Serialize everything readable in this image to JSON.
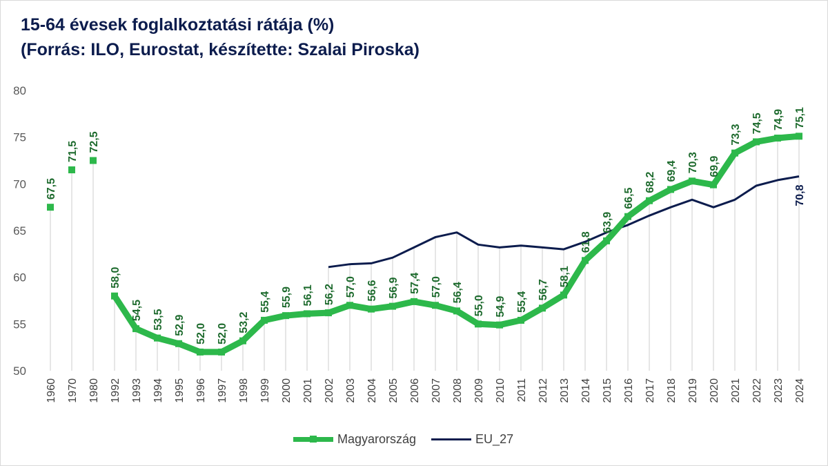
{
  "title": {
    "line1": "15-64 évesek foglalkoztatási rátája (%)",
    "line2": "(Forrás: ILO, Eurostat, készítette: Szalai Piroska)"
  },
  "colors": {
    "hungary": "#2db84b",
    "hungary_label": "#1e6b2e",
    "eu": "#0c1c4d",
    "grid": "#d9d9d9",
    "axis_text": "#595959"
  },
  "legend": {
    "hungary": "Magyarország",
    "eu": "EU_27"
  },
  "chart_data": {
    "type": "line",
    "title": "15-64 évesek foglalkoztatási rátája (%)",
    "subtitle": "(Forrás: ILO, Eurostat, készítette: Szalai Piroska)",
    "xlabel": "",
    "ylabel": "",
    "ylim": [
      50,
      80
    ],
    "yticks": [
      "50",
      "55",
      "60",
      "65",
      "70",
      "75",
      "80"
    ],
    "categories": [
      "1960",
      "1970",
      "1980",
      "1992",
      "1993",
      "1994",
      "1995",
      "1996",
      "1997",
      "1998",
      "1999",
      "2000",
      "2001",
      "2002",
      "2003",
      "2004",
      "2005",
      "2006",
      "2007",
      "2008",
      "2009",
      "2010",
      "2011",
      "2012",
      "2013",
      "2014",
      "2015",
      "2016",
      "2017",
      "2018",
      "2019",
      "2020",
      "2021",
      "2022",
      "2023",
      "2024"
    ],
    "grid": "vertical drop lines",
    "legend_position": "bottom",
    "series": [
      {
        "name": "Magyarország",
        "values": [
          67.5,
          71.5,
          72.5,
          58.0,
          54.5,
          53.5,
          52.9,
          52.0,
          52.0,
          53.2,
          55.4,
          55.9,
          56.1,
          56.2,
          57.0,
          56.6,
          56.9,
          57.4,
          57.0,
          56.4,
          55.0,
          54.9,
          55.4,
          56.7,
          58.1,
          61.8,
          63.9,
          66.5,
          68.2,
          69.4,
          70.3,
          69.9,
          73.3,
          74.5,
          74.9,
          75.1
        ],
        "labels": [
          "67,5",
          "71,5",
          "72,5",
          "58,0",
          "54,5",
          "53,5",
          "52,9",
          "52,0",
          "52,0",
          "53,2",
          "55,4",
          "55,9",
          "56,1",
          "56,2",
          "57,0",
          "56,6",
          "56,9",
          "57,4",
          "57,0",
          "56,4",
          "55,0",
          "54,9",
          "55,4",
          "56,7",
          "58,1",
          "61,8",
          "63,9",
          "66,5",
          "68,2",
          "69,4",
          "70,3",
          "69,9",
          "73,3",
          "74,5",
          "74,9",
          "75,1"
        ]
      },
      {
        "name": "EU_27",
        "values": [
          null,
          null,
          null,
          null,
          null,
          null,
          null,
          null,
          null,
          null,
          null,
          null,
          null,
          61.1,
          61.4,
          61.5,
          62.1,
          63.2,
          64.3,
          64.8,
          63.5,
          63.2,
          63.4,
          63.2,
          63.0,
          63.8,
          64.8,
          65.6,
          66.6,
          67.5,
          68.3,
          67.5,
          68.3,
          69.8,
          70.4,
          70.8
        ],
        "labels": [
          null,
          null,
          null,
          null,
          null,
          null,
          null,
          null,
          null,
          null,
          null,
          null,
          null,
          null,
          null,
          null,
          null,
          null,
          null,
          null,
          null,
          null,
          null,
          null,
          null,
          null,
          null,
          null,
          null,
          null,
          null,
          null,
          null,
          null,
          null,
          "70,8"
        ]
      }
    ]
  }
}
